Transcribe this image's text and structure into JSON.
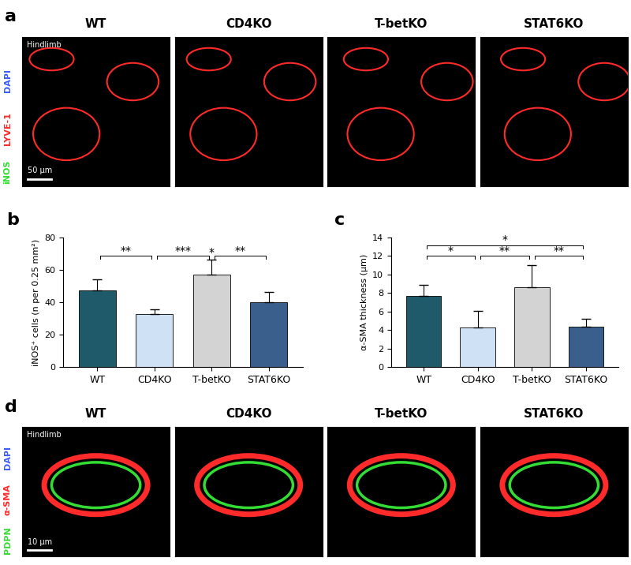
{
  "panels": {
    "a": {
      "letter": "a",
      "titles": [
        "WT",
        "CD4KO",
        "T-betKO",
        "STAT6KO"
      ],
      "region": "Hindlimb",
      "stain": [
        {
          "text": "iNOS",
          "color": "#33dd33"
        },
        {
          "text": "LYVE-1",
          "color": "#ff2a2a"
        },
        {
          "text": "DAPI",
          "color": "#3a5cff"
        }
      ],
      "scale_bar": "50 µm"
    },
    "d": {
      "letter": "d",
      "titles": [
        "WT",
        "CD4KO",
        "T-betKO",
        "STAT6KO"
      ],
      "region": "Hindlimb",
      "stain": [
        {
          "text": "PDPN",
          "color": "#33dd33"
        },
        {
          "text": "α-SMA",
          "color": "#ff2a2a"
        },
        {
          "text": "DAPI",
          "color": "#3a5cff"
        }
      ],
      "scale_bar": "10 µm"
    }
  },
  "chart_data": [
    {
      "panel": "b",
      "type": "bar",
      "categories": [
        "WT",
        "CD4KO",
        "T-betKO",
        "STAT6KO"
      ],
      "values": [
        47.5,
        32.5,
        57,
        40
      ],
      "error": [
        6.5,
        3,
        9.5,
        6.5
      ],
      "colors": [
        "#1f5a6b",
        "#cfe2f5",
        "#d3d3d3",
        "#3b5f8c"
      ],
      "y_label": "iNOS⁺ cells (n per 0.25 mm²)",
      "ylim": [
        0,
        80
      ],
      "yticks": [
        0,
        20,
        40,
        60,
        80
      ],
      "comparisons": [
        {
          "groups": [
            "WT",
            "CD4KO"
          ],
          "label": "**"
        },
        {
          "groups": [
            "CD4KO",
            "T-betKO"
          ],
          "label": "***"
        },
        {
          "groups": [
            "T-betKO",
            "STAT6KO"
          ],
          "label": "**"
        },
        {
          "groups": [
            "T-betKO"
          ],
          "label": "*"
        }
      ]
    },
    {
      "panel": "c",
      "type": "bar",
      "categories": [
        "WT",
        "CD4KO",
        "T-betKO",
        "STAT6KO"
      ],
      "values": [
        7.7,
        4.3,
        8.6,
        4.4
      ],
      "error": [
        1.2,
        1.8,
        2.4,
        0.8
      ],
      "colors": [
        "#1f5a6b",
        "#cfe2f5",
        "#d3d3d3",
        "#3b5f8c"
      ],
      "y_label": "α-SMA thickness (μm)",
      "ylim": [
        0,
        14
      ],
      "yticks": [
        0,
        2,
        4,
        6,
        8,
        10,
        12,
        14
      ],
      "comparisons": [
        {
          "groups": [
            "WT",
            "CD4KO"
          ],
          "label": "*"
        },
        {
          "groups": [
            "WT",
            "STAT6KO"
          ],
          "label": "*"
        },
        {
          "groups": [
            "CD4KO",
            "T-betKO"
          ],
          "label": "**"
        },
        {
          "groups": [
            "T-betKO",
            "STAT6KO"
          ],
          "label": "**"
        }
      ]
    }
  ]
}
